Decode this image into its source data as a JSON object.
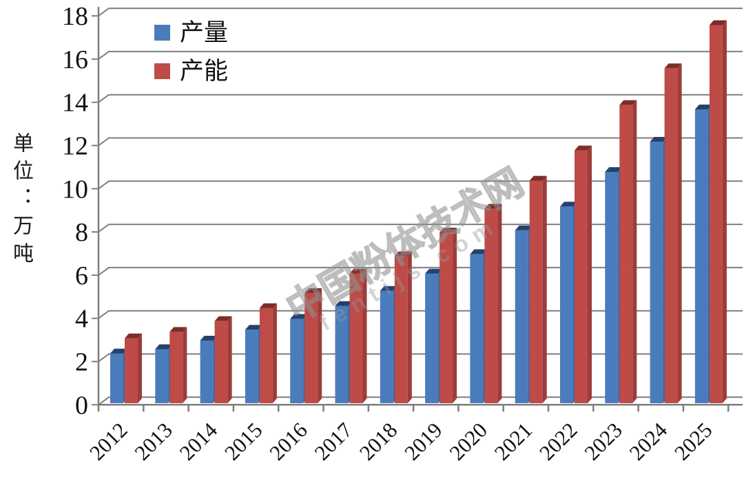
{
  "chart_data": {
    "type": "bar",
    "style": "3d-clustered-column",
    "title": "",
    "categories": [
      "2012",
      "2013",
      "2014",
      "2015",
      "2016",
      "2017",
      "2018",
      "2019",
      "2020",
      "2021",
      "2022",
      "2023",
      "2024",
      "2025"
    ],
    "series": [
      {
        "name": "产量",
        "color": "#4A7CBC",
        "color_top": "#27416F",
        "color_side": "#3A64A0",
        "values": [
          2.3,
          2.5,
          2.9,
          3.4,
          3.9,
          4.5,
          5.2,
          6.0,
          6.9,
          8.0,
          9.1,
          10.7,
          12.1,
          13.6
        ]
      },
      {
        "name": "产能",
        "color": "#BE4B47",
        "color_top": "#7C2D2A",
        "color_side": "#9D3C39",
        "values": [
          3.0,
          3.3,
          3.8,
          4.4,
          5.1,
          6.0,
          6.8,
          7.9,
          9.0,
          10.3,
          11.7,
          13.8,
          15.5,
          17.5
        ]
      }
    ],
    "xlabel": "",
    "ylabel": "单位：万吨",
    "ylim": [
      0,
      18
    ],
    "ytick_step": 2,
    "grid": true,
    "legend_position": "top-left-inside",
    "gridline_color": "#7d7d7d",
    "tick_label_color": "#111111"
  },
  "watermark": {
    "line1": "中国粉体技术网",
    "line2": "fentijs.com"
  }
}
